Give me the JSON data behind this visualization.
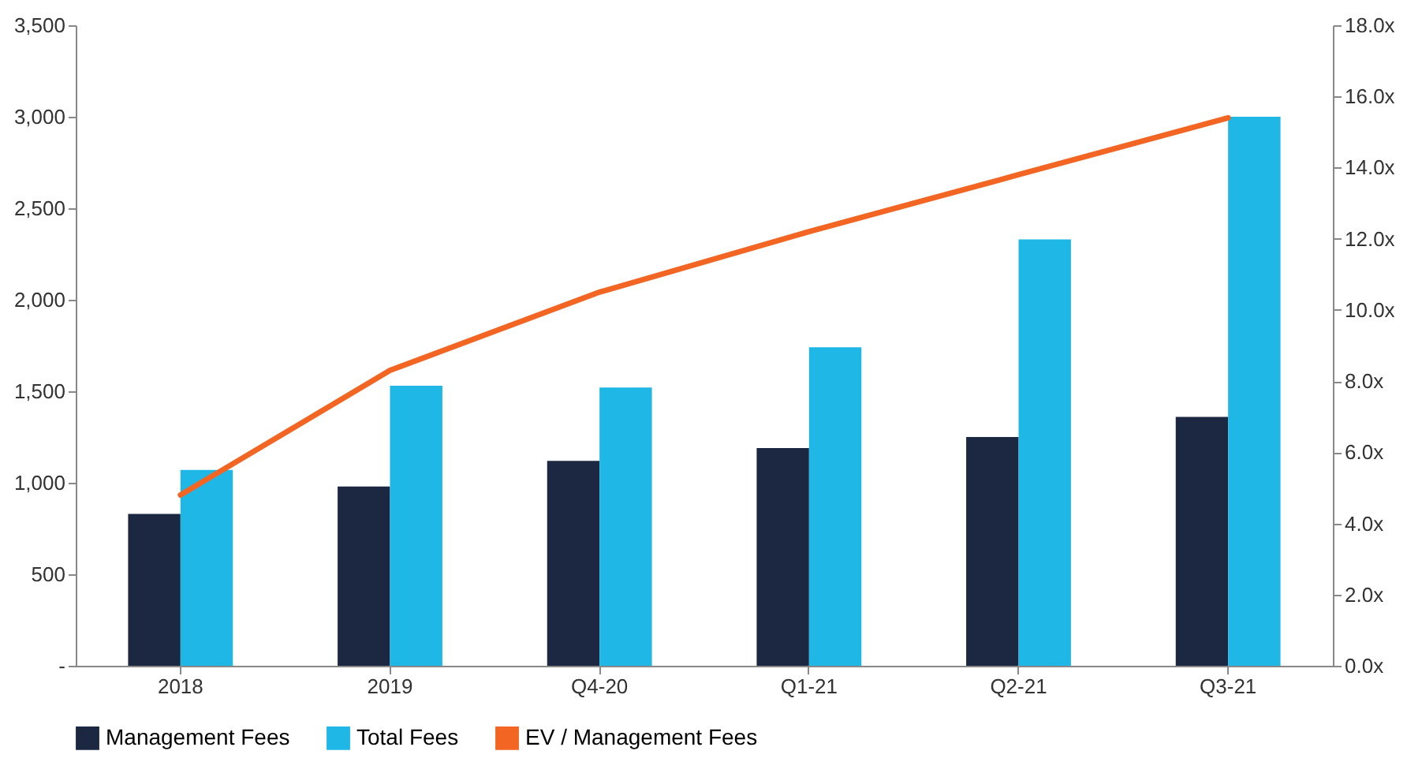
{
  "chart_data": {
    "type": "bar",
    "categories": [
      "2018",
      "2019",
      "Q4-20",
      "Q1-21",
      "Q2-21",
      "Q3-21"
    ],
    "series": [
      {
        "name": "Management Fees",
        "color": "#1c2841",
        "values": [
          830,
          980,
          1120,
          1190,
          1250,
          1360
        ]
      },
      {
        "name": "Total Fees",
        "color": "#1fb8e6",
        "values": [
          1070,
          1530,
          1520,
          1740,
          2330,
          3000
        ]
      },
      {
        "name": "EV / Management Fees",
        "color": "#f26522",
        "type": "line",
        "axis": "y2",
        "values": [
          4.8,
          8.3,
          10.5,
          12.2,
          13.8,
          15.4
        ]
      }
    ],
    "ylim": [
      0,
      3500
    ],
    "yticks": [
      {
        "value": 0,
        "label": "-"
      },
      500,
      {
        "value": 1000,
        "label": "1,000"
      },
      {
        "value": 1500,
        "label": "1,500"
      },
      {
        "value": 2000,
        "label": "2,000"
      },
      {
        "value": 2500,
        "label": "2,500"
      },
      {
        "value": 3000,
        "label": "3,000"
      },
      {
        "value": 3500,
        "label": "3,500"
      }
    ],
    "y2lim": [
      0,
      18
    ],
    "y2ticks": [
      {
        "value": 0,
        "label": "0.0x"
      },
      {
        "value": 2,
        "label": "2.0x"
      },
      {
        "value": 4,
        "label": "4.0x"
      },
      {
        "value": 6,
        "label": "6.0x"
      },
      {
        "value": 8,
        "label": "8.0x"
      },
      {
        "value": 10,
        "label": "10.0x"
      },
      {
        "value": 12,
        "label": "12.0x"
      },
      {
        "value": 14,
        "label": "14.0x"
      },
      {
        "value": 16,
        "label": "16.0x"
      },
      {
        "value": 18,
        "label": "18.0x"
      }
    ],
    "grid": false,
    "legend": "bottom"
  }
}
